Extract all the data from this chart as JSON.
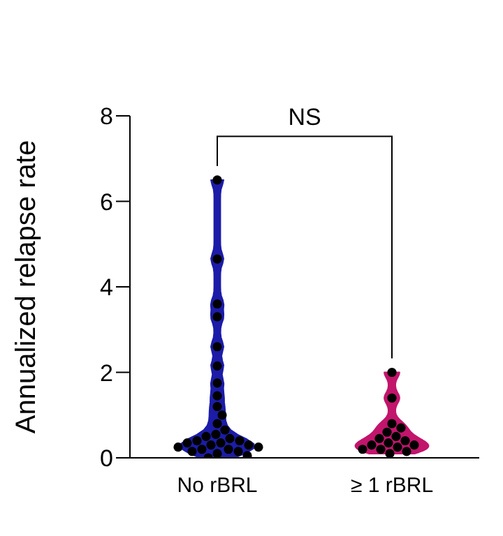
{
  "chart_data": {
    "type": "scatter",
    "ylabel": "Annualized relapse rate",
    "categories": [
      "No rBRL",
      "≥ 1 rBRL"
    ],
    "ylim": [
      0,
      8
    ],
    "yticks": [
      0,
      2,
      4,
      6,
      8
    ],
    "grid": false,
    "legend": false,
    "marker": "circle",
    "annotations": [
      "NS"
    ],
    "series": [
      {
        "color": "#000000",
        "x": [
          "No rBRL",
          "No rBRL",
          "No rBRL",
          "No rBRL",
          "No rBRL",
          "No rBRL",
          "No rBRL",
          "No rBRL",
          "No rBRL",
          "No rBRL",
          "No rBRL",
          "No rBRL",
          "No rBRL",
          "No rBRL",
          "No rBRL",
          "No rBRL",
          "No rBRL",
          "No rBRL",
          "No rBRL",
          "No rBRL",
          "No rBRL",
          "No rBRL",
          "No rBRL",
          "No rBRL",
          "No rBRL",
          "No rBRL",
          "No rBRL",
          "No rBRL",
          "No rBRL",
          "No rBRL",
          "≥ 1 rBRL",
          "≥ 1 rBRL",
          "≥ 1 rBRL",
          "≥ 1 rBRL",
          "≥ 1 rBRL",
          "≥ 1 rBRL",
          "≥ 1 rBRL",
          "≥ 1 rBRL",
          "≥ 1 rBRL",
          "≥ 1 rBRL",
          "≥ 1 rBRL",
          "≥ 1 rBRL",
          "≥ 1 rBRL",
          "≥ 1 rBRL",
          "≥ 1 rBRL",
          "≥ 1 rBRL"
        ],
        "values": [
          6.5,
          4.65,
          3.6,
          3.3,
          2.6,
          2.15,
          1.75,
          1.45,
          1.2,
          1.0,
          0.8,
          0.65,
          0.55,
          0.5,
          0.45,
          0.4,
          0.4,
          0.35,
          0.35,
          0.3,
          0.3,
          0.25,
          0.25,
          0.2,
          0.2,
          0.15,
          0.15,
          0.1,
          0.05,
          0,
          2.0,
          1.4,
          0.8,
          0.7,
          0.6,
          0.5,
          0.45,
          0.4,
          0.35,
          0.3,
          0.3,
          0.25,
          0.2,
          0.2,
          0.15,
          0.1
        ]
      }
    ]
  }
}
